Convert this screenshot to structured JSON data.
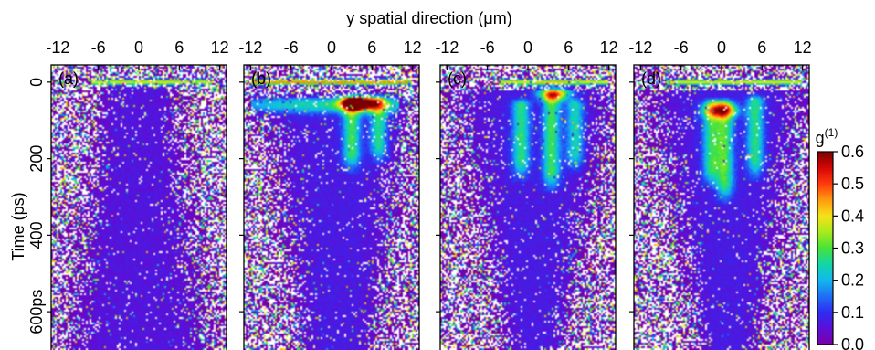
{
  "chart_data": {
    "type": "heatmap",
    "title": "",
    "xlabel": "y spatial direction (μm)",
    "ylabel": "Time (ps)",
    "x_ticks": [
      -12,
      -6,
      0,
      6,
      12
    ],
    "x_tick_labels": [
      "-12",
      "-6",
      "0",
      "6",
      "12"
    ],
    "xlim": [
      -13,
      13
    ],
    "y_ticks": [
      0,
      200,
      400,
      600
    ],
    "y_tick_labels": [
      "0",
      "200",
      "400",
      "600ps"
    ],
    "ylim": [
      -45,
      700
    ],
    "y_inverted": true,
    "colorbar": {
      "label": "g(1)",
      "range": [
        0.0,
        0.6
      ],
      "ticks": [
        0.0,
        0.1,
        0.2,
        0.3,
        0.4,
        0.5,
        0.6
      ],
      "tick_labels": [
        "0.0",
        "0.1",
        "0.2",
        "0.3",
        "0.4",
        "0.5",
        "0.6"
      ],
      "colormap": [
        "#7a00a6",
        "#5c0fd8",
        "#2f2cf0",
        "#1f6ff5",
        "#12b8ee",
        "#12d6a6",
        "#47e23a",
        "#a9ea1b",
        "#f5e21a",
        "#ff9a10",
        "#ff3a0d",
        "#d40606",
        "#7a0000"
      ]
    },
    "panels": [
      {
        "label": "(a)",
        "features": [
          {
            "kind": "bright_line",
            "y": 0,
            "x_range": [
              -7,
              11
            ],
            "value": 0.4
          },
          {
            "kind": "fan",
            "x_center": 0,
            "t_start": 10,
            "t_end": 700,
            "halfwidth_start_um": 5.5,
            "halfwidth_end_um": 10.5,
            "value": 0.06
          }
        ]
      },
      {
        "label": "(b)",
        "features": [
          {
            "kind": "bright_line",
            "y": 0,
            "x_range": [
              -12,
              12
            ],
            "value": 0.45
          },
          {
            "kind": "band",
            "t": 60,
            "x_range": [
              -12,
              10
            ],
            "value": 0.18
          },
          {
            "kind": "hotspot",
            "x": 4,
            "t": 55,
            "value": 0.6
          },
          {
            "kind": "streak",
            "x": 3,
            "t_start": 50,
            "t_end": 180,
            "value": 0.22
          },
          {
            "kind": "streak",
            "x": 7,
            "t_start": 50,
            "t_end": 160,
            "value": 0.2
          },
          {
            "kind": "fan",
            "x_center": 1,
            "t_start": 40,
            "t_end": 700,
            "halfwidth_start_um": 11,
            "halfwidth_end_um": 5,
            "value": 0.07
          }
        ]
      },
      {
        "label": "(c)",
        "features": [
          {
            "kind": "bright_line",
            "y": 0,
            "x_range": [
              -4,
              12
            ],
            "value": 0.4
          },
          {
            "kind": "hotspot",
            "x": 4,
            "t": 30,
            "value": 0.35
          },
          {
            "kind": "streak",
            "x": -1,
            "t_start": 60,
            "t_end": 200,
            "value": 0.2
          },
          {
            "kind": "streak",
            "x": 3.5,
            "t_start": 40,
            "t_end": 230,
            "value": 0.22
          },
          {
            "kind": "streak",
            "x": 7,
            "t_start": 60,
            "t_end": 180,
            "value": 0.18
          },
          {
            "kind": "fan",
            "x_center": 1,
            "t_start": 20,
            "t_end": 700,
            "halfwidth_start_um": 12,
            "halfwidth_end_um": 4,
            "value": 0.07
          }
        ]
      },
      {
        "label": "(d)",
        "features": [
          {
            "kind": "bright_line",
            "y": 0,
            "x_range": [
              -8,
              12
            ],
            "value": 0.4
          },
          {
            "kind": "hotspot",
            "x": 0,
            "t": 75,
            "value": 0.33
          },
          {
            "kind": "streak",
            "x": -1.5,
            "t_start": 60,
            "t_end": 220,
            "value": 0.2
          },
          {
            "kind": "streak",
            "x": 0.5,
            "t_start": 60,
            "t_end": 260,
            "value": 0.22
          },
          {
            "kind": "streak",
            "x": 5,
            "t_start": 50,
            "t_end": 200,
            "value": 0.2
          },
          {
            "kind": "fan",
            "x_center": 1,
            "t_start": 20,
            "t_end": 700,
            "halfwidth_start_um": 12,
            "halfwidth_end_um": 4,
            "value": 0.07
          }
        ]
      }
    ]
  }
}
